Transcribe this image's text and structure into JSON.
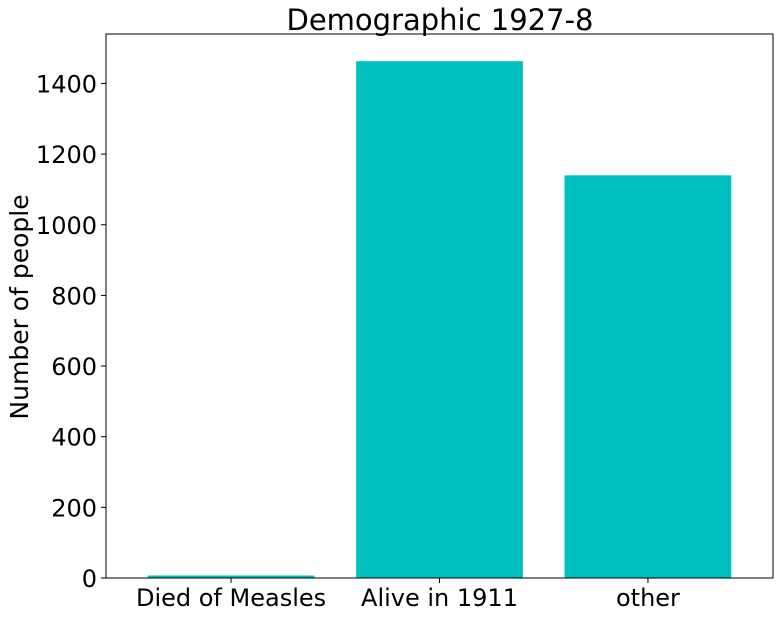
{
  "chart_data": {
    "type": "bar",
    "title": "Demographic 1927-8",
    "xlabel": "",
    "ylabel": "Number of people",
    "categories": [
      "Died of Measles",
      "Alive in 1911",
      "other"
    ],
    "values": [
      7,
      1463,
      1140
    ],
    "ylim": [
      0,
      1540
    ],
    "yticks": [
      0,
      200,
      400,
      600,
      800,
      1000,
      1200,
      1400
    ],
    "bar_color": "#00bfbf",
    "grid": false,
    "legend": "none"
  }
}
